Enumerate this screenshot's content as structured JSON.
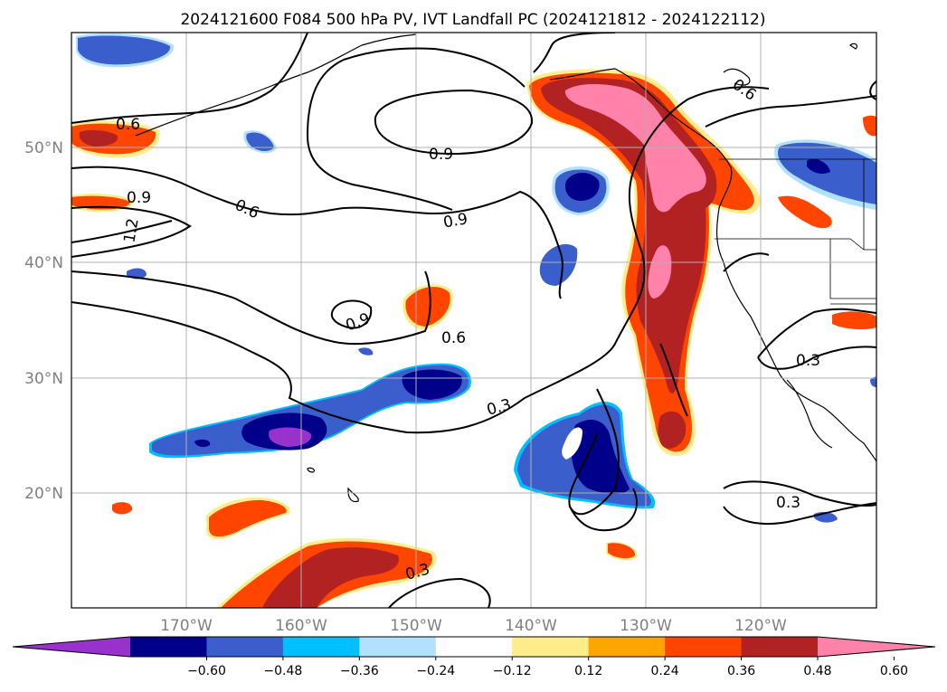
{
  "title": "2024121600 F084 500 hPa PV, IVT Landfall PC (2024121812 - 2024122112)",
  "map": {
    "lon_range": [
      -180,
      -110
    ],
    "lat_range": [
      10,
      60
    ],
    "lon_ticks": [
      "170°W",
      "160°W",
      "150°W",
      "140°W",
      "130°W",
      "120°W"
    ],
    "lat_ticks": [
      "50°N",
      "40°N",
      "30°N",
      "20°N"
    ],
    "gridlines": true,
    "contour_labels": [
      "0.6",
      "0.9",
      "1.2",
      "0.9",
      "0.9",
      "0.6",
      "0.9",
      "0.6",
      "0.3",
      "0.6",
      "0.3",
      "0.3",
      "0.3"
    ]
  },
  "colorbar": {
    "tick_labels": [
      "−0.60",
      "−0.48",
      "−0.36",
      "−0.24",
      "−0.12",
      "0.12",
      "0.24",
      "0.36",
      "0.48",
      "0.60"
    ],
    "colors": [
      "#9932cc",
      "#00008b",
      "#3a5fcd",
      "#00bfff",
      "#b0e2ff",
      "#ffffff",
      "#ffec8b",
      "#ffa500",
      "#ff4500",
      "#b22222",
      "#ff82ab"
    ],
    "extend": "both"
  },
  "chart_data": {
    "type": "heatmap",
    "title": "2024121600 F084 500 hPa PV, IVT Landfall PC (2024121812 - 2024122112)",
    "x_range_lon": [
      -180,
      -110
    ],
    "y_range_lat": [
      10,
      60
    ],
    "levels": [
      -0.6,
      -0.48,
      -0.36,
      -0.24,
      -0.12,
      0.12,
      0.24,
      0.36,
      0.48,
      0.6
    ],
    "contour_levels": [
      0.3,
      0.6,
      0.9,
      1.2
    ]
  }
}
